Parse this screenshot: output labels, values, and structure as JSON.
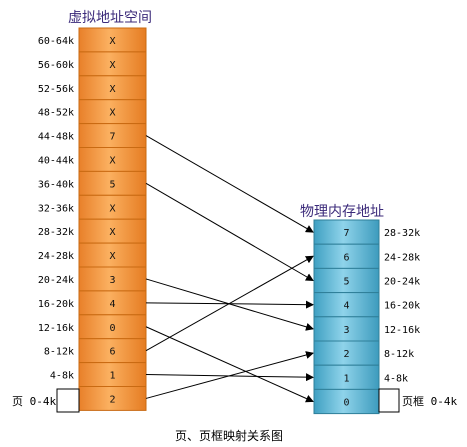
{
  "virtual_title": "虚拟地址空间",
  "physical_title": "物理内存地址",
  "caption": "页、页框映射关系图",
  "page_side_label": "页 0-4k",
  "frame_side_label": "页框 0-4k",
  "virtual_pages": [
    {
      "range": "60-64k",
      "value": "X"
    },
    {
      "range": "56-60k",
      "value": "X"
    },
    {
      "range": "52-56k",
      "value": "X"
    },
    {
      "range": "48-52k",
      "value": "X"
    },
    {
      "range": "44-48k",
      "value": "7"
    },
    {
      "range": "40-44k",
      "value": "X"
    },
    {
      "range": "36-40k",
      "value": "5"
    },
    {
      "range": "32-36k",
      "value": "X"
    },
    {
      "range": "28-32k",
      "value": "X"
    },
    {
      "range": "24-28k",
      "value": "X"
    },
    {
      "range": "20-24k",
      "value": "3"
    },
    {
      "range": "16-20k",
      "value": "4"
    },
    {
      "range": "12-16k",
      "value": "0"
    },
    {
      "range": "8-12k",
      "value": "6"
    },
    {
      "range": "4-8k",
      "value": "1"
    },
    {
      "range": "",
      "value": "2"
    }
  ],
  "physical_frames": [
    {
      "value": "7",
      "range": "28-32k"
    },
    {
      "value": "6",
      "range": "24-28k"
    },
    {
      "value": "5",
      "range": "20-24k"
    },
    {
      "value": "4",
      "range": "16-20k"
    },
    {
      "value": "3",
      "range": "12-16k"
    },
    {
      "value": "2",
      "range": "8-12k"
    },
    {
      "value": "1",
      "range": "4-8k"
    },
    {
      "value": "0",
      "range": ""
    }
  ],
  "colors": {
    "virtual_fill": "#f7a24a",
    "virtual_border": "#c96a12",
    "physical_fill": "#5ab6d4",
    "physical_border": "#2f7f99",
    "arrow": "#000000"
  }
}
